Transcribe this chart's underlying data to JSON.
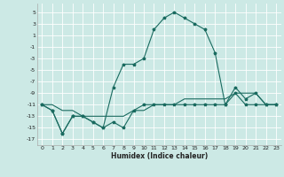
{
  "xlabel": "Humidex (Indice chaleur)",
  "xlim": [
    -0.5,
    23.5
  ],
  "ylim": [
    -18,
    6.5
  ],
  "yticks": [
    5,
    3,
    1,
    -1,
    -3,
    -5,
    -7,
    -9,
    -11,
    -13,
    -15,
    -17
  ],
  "xticks": [
    0,
    1,
    2,
    3,
    4,
    5,
    6,
    7,
    8,
    9,
    10,
    11,
    12,
    13,
    14,
    15,
    16,
    17,
    18,
    19,
    20,
    21,
    22,
    23
  ],
  "bg_color": "#cce9e5",
  "grid_color": "#ffffff",
  "line_color": "#1a6b60",
  "line1": [
    -11,
    -12,
    -16,
    -13,
    -13,
    -14,
    -15,
    -8,
    -4,
    -4,
    -3,
    2,
    4,
    5,
    4,
    3,
    2,
    -2,
    -11,
    -8,
    -10,
    -9,
    -11,
    -11
  ],
  "line2": [
    -11,
    -12,
    -16,
    -13,
    -13,
    -14,
    -15,
    -14,
    -15,
    -12,
    -11,
    -11,
    -11,
    -11,
    -11,
    -11,
    -11,
    -11,
    -11,
    -9,
    -11,
    -11,
    -11,
    -11
  ],
  "line3": [
    -11,
    -11,
    -12,
    -12,
    -13,
    -13,
    -13,
    -13,
    -13,
    -12,
    -12,
    -11,
    -11,
    -11,
    -10,
    -10,
    -10,
    -10,
    -10,
    -9,
    -9,
    -9,
    -11,
    -11
  ]
}
